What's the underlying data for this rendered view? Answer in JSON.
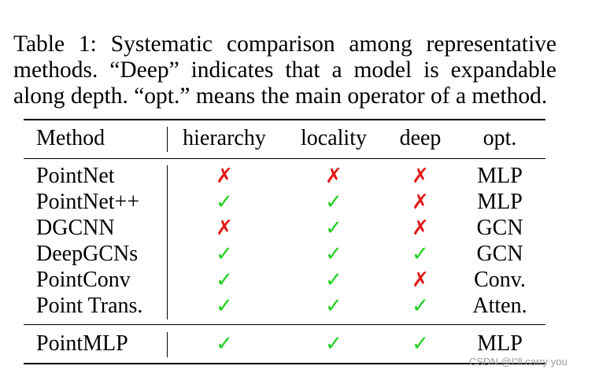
{
  "caption": "Table 1: Systematic comparison among representative methods. “Deep” indicates that a model is expandable along depth. “opt.” means the main operator of a method.",
  "table": {
    "headers": [
      "Method",
      "hierarchy",
      "locality",
      "deep",
      "opt."
    ],
    "marks": {
      "yes": "✓",
      "no": "✗"
    },
    "rows": [
      {
        "method": "PointNet",
        "hierarchy": "no",
        "locality": "no",
        "deep": "no",
        "opt": "MLP"
      },
      {
        "method": "PointNet++",
        "hierarchy": "yes",
        "locality": "yes",
        "deep": "no",
        "opt": "MLP"
      },
      {
        "method": "DGCNN",
        "hierarchy": "no",
        "locality": "yes",
        "deep": "no",
        "opt": "GCN"
      },
      {
        "method": "DeepGCNs",
        "hierarchy": "yes",
        "locality": "yes",
        "deep": "yes",
        "opt": "GCN"
      },
      {
        "method": "PointConv",
        "hierarchy": "yes",
        "locality": "yes",
        "deep": "no",
        "opt": "Conv."
      },
      {
        "method": "Point Trans.",
        "hierarchy": "yes",
        "locality": "yes",
        "deep": "yes",
        "opt": "Atten."
      }
    ],
    "final_row": {
      "method": "PointMLP",
      "hierarchy": "yes",
      "locality": "yes",
      "deep": "yes",
      "opt": "MLP"
    }
  },
  "colors": {
    "yes": "#1fd01f",
    "no": "#e21a1a"
  },
  "watermark": "CSDN @I\"ll  carry  you"
}
